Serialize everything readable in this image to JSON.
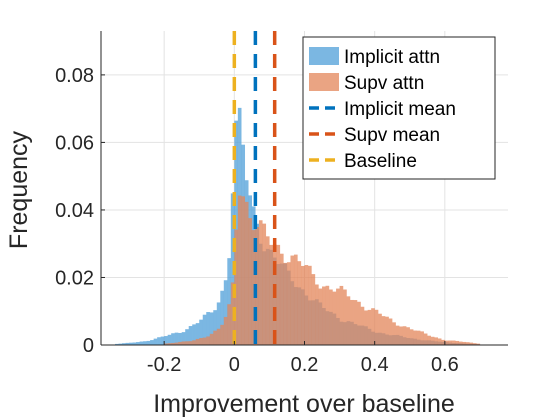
{
  "chart_data": {
    "type": "histogram",
    "xlabel": "Improvement over baseline",
    "ylabel": "Frequency",
    "xlim": [
      -0.38,
      0.78
    ],
    "ylim": [
      0,
      0.093
    ],
    "grid": true,
    "legend_position": "top-right",
    "xticks": [
      {
        "value": -0.2,
        "label": "-0.2"
      },
      {
        "value": 0,
        "label": "0"
      },
      {
        "value": 0.2,
        "label": "0.2"
      },
      {
        "value": 0.4,
        "label": "0.4"
      },
      {
        "value": 0.6,
        "label": "0.6"
      }
    ],
    "yticks": [
      {
        "value": 0,
        "label": "0"
      },
      {
        "value": 0.02,
        "label": "0.02"
      },
      {
        "value": 0.04,
        "label": "0.04"
      },
      {
        "value": 0.06,
        "label": "0.06"
      },
      {
        "value": 0.08,
        "label": "0.08"
      }
    ],
    "bin_width": 0.01,
    "series": [
      {
        "name": "Implicit attn",
        "kind": "histogram",
        "color": "#4f9fd8",
        "opacity": 0.75,
        "profile": [
          [
            -0.34,
            0.0003
          ],
          [
            -0.3,
            0.0006
          ],
          [
            -0.25,
            0.0012
          ],
          [
            -0.2,
            0.0025
          ],
          [
            -0.15,
            0.004
          ],
          [
            -0.1,
            0.007
          ],
          [
            -0.06,
            0.01
          ],
          [
            -0.04,
            0.014
          ],
          [
            -0.02,
            0.022
          ],
          [
            -0.01,
            0.035
          ],
          [
            0.0,
            0.06
          ],
          [
            0.01,
            0.066
          ],
          [
            0.02,
            0.062
          ],
          [
            0.03,
            0.052
          ],
          [
            0.05,
            0.04
          ],
          [
            0.08,
            0.032
          ],
          [
            0.1,
            0.028
          ],
          [
            0.15,
            0.021
          ],
          [
            0.2,
            0.016
          ],
          [
            0.25,
            0.011
          ],
          [
            0.3,
            0.008
          ],
          [
            0.35,
            0.006
          ],
          [
            0.4,
            0.004
          ],
          [
            0.5,
            0.002
          ],
          [
            0.6,
            0.0008
          ],
          [
            0.7,
            0.0002
          ]
        ]
      },
      {
        "name": "Supv attn",
        "kind": "histogram",
        "color": "#e3855a",
        "opacity": 0.75,
        "profile": [
          [
            -0.2,
            0.0004
          ],
          [
            -0.12,
            0.0012
          ],
          [
            -0.07,
            0.003
          ],
          [
            -0.04,
            0.005
          ],
          [
            -0.02,
            0.009
          ],
          [
            -0.01,
            0.013
          ],
          [
            0.0,
            0.022
          ],
          [
            0.01,
            0.05
          ],
          [
            0.02,
            0.048
          ],
          [
            0.03,
            0.044
          ],
          [
            0.05,
            0.037
          ],
          [
            0.08,
            0.033
          ],
          [
            0.1,
            0.031
          ],
          [
            0.15,
            0.027
          ],
          [
            0.2,
            0.023
          ],
          [
            0.25,
            0.018
          ],
          [
            0.3,
            0.016
          ],
          [
            0.35,
            0.013
          ],
          [
            0.4,
            0.01
          ],
          [
            0.45,
            0.007
          ],
          [
            0.5,
            0.005
          ],
          [
            0.55,
            0.003
          ],
          [
            0.6,
            0.0015
          ],
          [
            0.7,
            0.0004
          ]
        ]
      }
    ],
    "reference_lines": [
      {
        "name": "Implicit mean",
        "x": 0.06,
        "color": "#0072bd",
        "style": "dashed"
      },
      {
        "name": "Supv mean",
        "x": 0.115,
        "color": "#d95319",
        "style": "dashed"
      },
      {
        "name": "Baseline",
        "x": 0.0,
        "color": "#edb120",
        "style": "dashed"
      }
    ]
  }
}
